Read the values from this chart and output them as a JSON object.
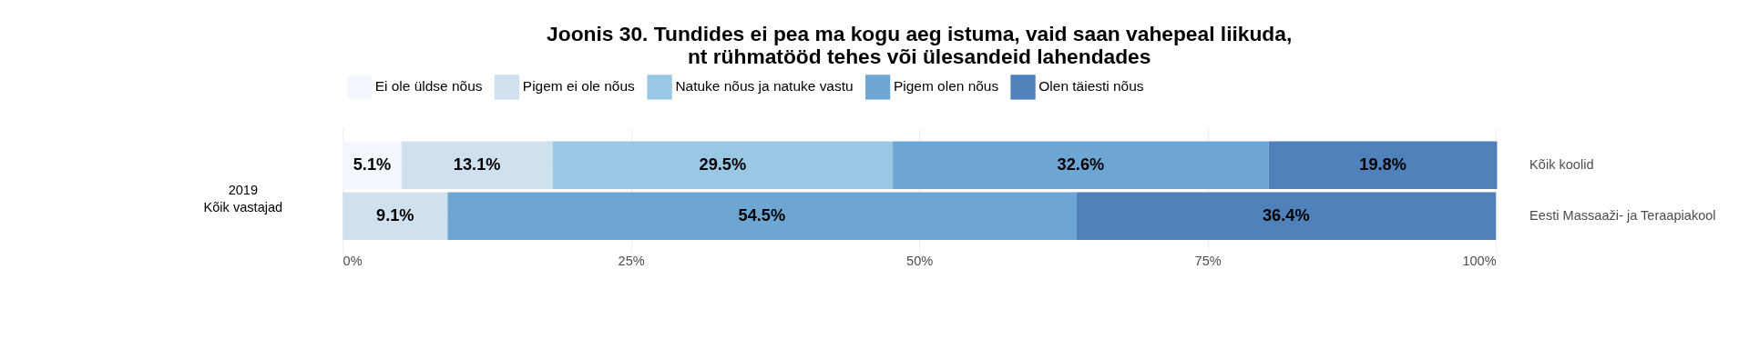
{
  "chart_data": {
    "type": "bar",
    "orientation": "horizontal",
    "stacked": true,
    "title": "Joonis 30. Tundides ei pea ma kogu aeg istuma, vaid saan vahepeal liikuda,\nnt rühmatööd tehes või ülesandeid lahendades",
    "categories": [
      "Kõik koolid",
      "Eesti Massaaži- ja Teraapiakool"
    ],
    "series": [
      {
        "name": "Ei ole üldse nõus",
        "color": "#f4f8fe",
        "values": [
          5.1,
          null
        ],
        "value_labels": [
          "5.1%",
          null
        ]
      },
      {
        "name": "Pigem ei ole nõus",
        "color": "#cfe1ee",
        "values": [
          13.1,
          9.1
        ],
        "value_labels": [
          "13.1%",
          "9.1%"
        ]
      },
      {
        "name": "Natuke nõus ja natuke vastu",
        "color": "#9ac7e3",
        "values": [
          29.5,
          null
        ],
        "value_labels": [
          "29.5%",
          null
        ]
      },
      {
        "name": "Pigem olen nõus",
        "color": "#6da6d3",
        "values": [
          32.6,
          54.5
        ],
        "value_labels": [
          "32.6%",
          "54.5%"
        ]
      },
      {
        "name": "Olen täiesti nõus",
        "color": "#4f82bb",
        "values": [
          19.8,
          36.4
        ],
        "value_labels": [
          "19.8%",
          "36.4%"
        ]
      }
    ],
    "xlim": [
      0,
      100
    ],
    "xticks": [
      {
        "value": 0,
        "label": "0%"
      },
      {
        "value": 25,
        "label": "25%"
      },
      {
        "value": 50,
        "label": "50%"
      },
      {
        "value": 75,
        "label": "75%"
      },
      {
        "value": 100,
        "label": "100%"
      }
    ],
    "grid": true,
    "legend": "top",
    "annotations": [
      "2019\nKõik vastajad"
    ]
  }
}
